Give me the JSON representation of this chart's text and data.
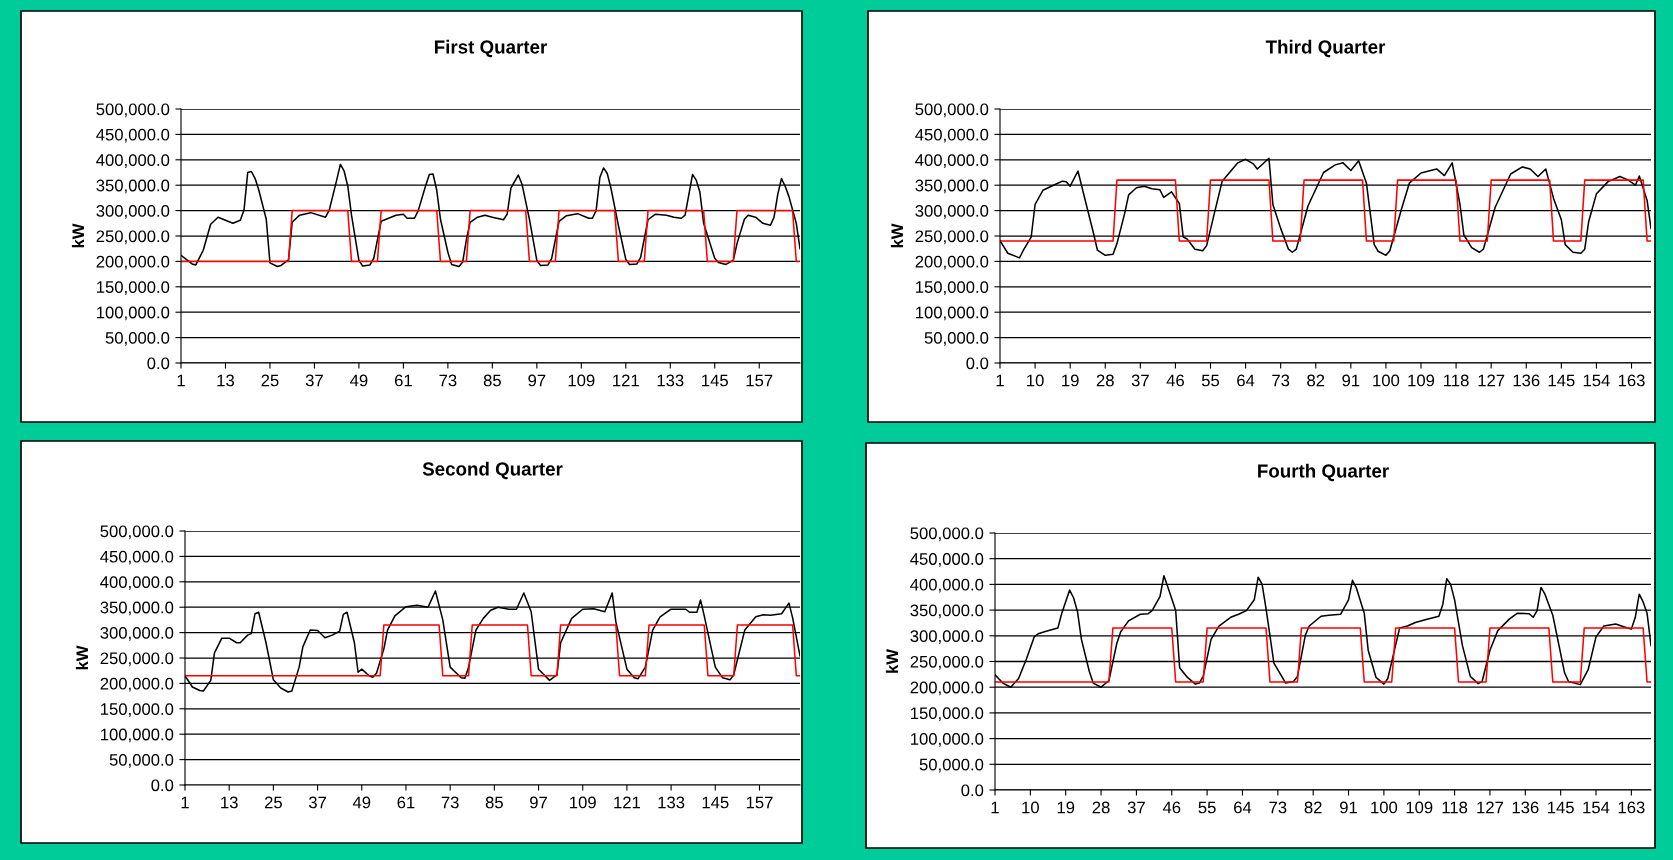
{
  "chart_data": [
    {
      "type": "line",
      "title": "First Quarter",
      "ylabel": "kW",
      "xlim": [
        1,
        168
      ],
      "xticks": [
        1,
        13,
        25,
        37,
        49,
        61,
        73,
        85,
        97,
        109,
        121,
        133,
        145,
        157
      ],
      "ylim": [
        0,
        500000
      ],
      "yticks": [
        {
          "value": 0,
          "label": "0.0"
        },
        {
          "value": 50000,
          "label": "50,000.0"
        },
        {
          "value": 100000,
          "label": "100,000.0"
        },
        {
          "value": 150000,
          "label": "150,000.0"
        },
        {
          "value": 200000,
          "label": "200,000.0"
        },
        {
          "value": 250000,
          "label": "250,000.0"
        },
        {
          "value": 300000,
          "label": "300,000.0"
        },
        {
          "value": 350000,
          "label": "350,000.0"
        },
        {
          "value": 400000,
          "label": "400,000.0"
        },
        {
          "value": 450000,
          "label": "450,000.0"
        },
        {
          "value": 500000,
          "label": "500,000.0"
        }
      ],
      "grid": "y",
      "series": [
        {
          "color": "#000000",
          "x": [
            1,
            4,
            5,
            7,
            9,
            11,
            15,
            17,
            18,
            19,
            20,
            21,
            22,
            24,
            25,
            27,
            28,
            30,
            31,
            33,
            36,
            40,
            41,
            43,
            44,
            45,
            46,
            47,
            49,
            50,
            52,
            53,
            55,
            57,
            59,
            61,
            62,
            64,
            65,
            67,
            68,
            69,
            70,
            71,
            73,
            74,
            76,
            77,
            78,
            79,
            81,
            83,
            85,
            88,
            89,
            90,
            92,
            93,
            95,
            97,
            98,
            100,
            101,
            103,
            105,
            108,
            111,
            112,
            113,
            114,
            115,
            116,
            117,
            119,
            121,
            122,
            124,
            125,
            127,
            129,
            132,
            134,
            136,
            137,
            139,
            140,
            141,
            142,
            145,
            146,
            148,
            150,
            151,
            153,
            154,
            156,
            158,
            160,
            161,
            162,
            163,
            164,
            165,
            167,
            168
          ],
          "values": [
            212000,
            195000,
            193000,
            222000,
            273000,
            287000,
            275000,
            281000,
            301000,
            375000,
            377000,
            363000,
            340000,
            283000,
            197000,
            190000,
            192000,
            203000,
            277000,
            291000,
            296000,
            287000,
            301000,
            360000,
            391000,
            378000,
            348000,
            291000,
            202000,
            191000,
            193000,
            206000,
            279000,
            285000,
            291000,
            293000,
            285000,
            285000,
            300000,
            349000,
            371000,
            372000,
            340000,
            283000,
            218000,
            194000,
            190000,
            199000,
            243000,
            277000,
            287000,
            291000,
            287000,
            282000,
            293000,
            344000,
            370000,
            352000,
            283000,
            202000,
            192000,
            193000,
            206000,
            279000,
            290000,
            294000,
            285000,
            285000,
            300000,
            365000,
            384000,
            373000,
            344000,
            271000,
            204000,
            194000,
            195000,
            208000,
            282000,
            293000,
            291000,
            287000,
            285000,
            291000,
            371000,
            360000,
            336000,
            275000,
            206000,
            198000,
            194000,
            202000,
            235000,
            283000,
            291000,
            287000,
            275000,
            271000,
            287000,
            332000,
            363000,
            348000,
            328000,
            275000,
            225000
          ]
        },
        {
          "color": "#ff0000",
          "x": [
            1,
            30,
            31,
            46,
            47,
            54,
            55,
            70,
            71,
            78,
            79,
            94,
            95,
            102,
            103,
            118,
            119,
            126,
            127,
            142,
            143,
            150,
            151,
            166,
            167,
            168
          ],
          "values": [
            200000,
            200000,
            300000,
            300000,
            200000,
            200000,
            300000,
            300000,
            200000,
            200000,
            300000,
            300000,
            200000,
            200000,
            300000,
            300000,
            200000,
            200000,
            300000,
            300000,
            200000,
            200000,
            300000,
            300000,
            200000,
            200000
          ]
        }
      ]
    },
    {
      "type": "line",
      "title": "Third Quarter",
      "ylabel": "kW",
      "xlim": [
        1,
        168
      ],
      "xticks": [
        1,
        10,
        19,
        28,
        37,
        46,
        55,
        64,
        73,
        82,
        91,
        100,
        109,
        118,
        127,
        136,
        145,
        154,
        163
      ],
      "ylim": [
        0,
        500000
      ],
      "yticks": [
        {
          "value": 0,
          "label": "0.0"
        },
        {
          "value": 50000,
          "label": "50,000.0"
        },
        {
          "value": 100000,
          "label": "100,000.0"
        },
        {
          "value": 150000,
          "label": "150,000.0"
        },
        {
          "value": 200000,
          "label": "200,000.0"
        },
        {
          "value": 250000,
          "label": "250,000.0"
        },
        {
          "value": 300000,
          "label": "300,000.0"
        },
        {
          "value": 350000,
          "label": "350,000.0"
        },
        {
          "value": 400000,
          "label": "400,000.0"
        },
        {
          "value": 450000,
          "label": "450,000.0"
        },
        {
          "value": 500000,
          "label": "500,000.0"
        }
      ],
      "grid": "y",
      "series": [
        {
          "color": "#000000",
          "x": [
            1,
            3,
            6,
            7,
            9,
            10,
            12,
            15,
            17,
            18,
            19,
            21,
            23,
            25,
            26,
            28,
            30,
            31,
            33,
            34,
            36,
            38,
            40,
            42,
            43,
            45,
            47,
            48,
            49,
            51,
            53,
            54,
            56,
            58,
            62,
            64,
            66,
            67,
            70,
            71,
            73,
            75,
            76,
            77,
            80,
            84,
            87,
            89,
            91,
            93,
            95,
            97,
            98,
            100,
            101,
            104,
            106,
            109,
            113,
            115,
            117,
            119,
            120,
            122,
            124,
            125,
            128,
            132,
            135,
            137,
            139,
            141,
            143,
            145,
            146,
            148,
            150,
            151,
            152,
            154,
            157,
            160,
            162,
            164,
            165,
            167,
            168
          ],
          "values": [
            241000,
            216000,
            207000,
            222000,
            248000,
            312000,
            340000,
            351000,
            358000,
            357000,
            348000,
            378000,
            316000,
            255000,
            222000,
            212000,
            214000,
            235000,
            295000,
            331000,
            345000,
            348000,
            343000,
            341000,
            326000,
            337000,
            314000,
            248000,
            244000,
            224000,
            221000,
            231000,
            295000,
            358000,
            394000,
            401000,
            392000,
            382000,
            403000,
            312000,
            265000,
            224000,
            218000,
            224000,
            309000,
            375000,
            390000,
            394000,
            379000,
            398000,
            354000,
            233000,
            220000,
            212000,
            221000,
            303000,
            354000,
            374000,
            382000,
            369000,
            394000,
            312000,
            252000,
            227000,
            218000,
            224000,
            306000,
            372000,
            386000,
            382000,
            367000,
            382000,
            324000,
            282000,
            233000,
            218000,
            216000,
            224000,
            278000,
            333000,
            357000,
            367000,
            361000,
            350000,
            368000,
            320000,
            265000
          ]
        },
        {
          "color": "#ff0000",
          "x": [
            1,
            30,
            31,
            46,
            47,
            54,
            55,
            70,
            71,
            78,
            79,
            94,
            95,
            102,
            103,
            118,
            119,
            126,
            127,
            142,
            143,
            150,
            151,
            166,
            167,
            168
          ],
          "values": [
            240000,
            240000,
            360000,
            360000,
            240000,
            240000,
            360000,
            360000,
            240000,
            240000,
            360000,
            360000,
            240000,
            240000,
            360000,
            360000,
            240000,
            240000,
            360000,
            360000,
            240000,
            240000,
            360000,
            360000,
            240000,
            240000
          ]
        }
      ]
    },
    {
      "type": "line",
      "title": "Second Quarter",
      "ylabel": "kW",
      "xlim": [
        1,
        168
      ],
      "xticks": [
        1,
        13,
        25,
        37,
        49,
        61,
        73,
        85,
        97,
        109,
        121,
        133,
        145,
        157
      ],
      "ylim": [
        0,
        500000
      ],
      "yticks": [
        {
          "value": 0,
          "label": "0.0"
        },
        {
          "value": 50000,
          "label": "50,000.0"
        },
        {
          "value": 100000,
          "label": "100,000.0"
        },
        {
          "value": 150000,
          "label": "150,000.0"
        },
        {
          "value": 200000,
          "label": "200,000.0"
        },
        {
          "value": 250000,
          "label": "250,000.0"
        },
        {
          "value": 300000,
          "label": "300,000.0"
        },
        {
          "value": 350000,
          "label": "350,000.0"
        },
        {
          "value": 400000,
          "label": "400,000.0"
        },
        {
          "value": 450000,
          "label": "450,000.0"
        },
        {
          "value": 500000,
          "label": "500,000.0"
        }
      ],
      "grid": "y",
      "series": [
        {
          "color": "#000000",
          "x": [
            1,
            3,
            5,
            6,
            8,
            9,
            11,
            13,
            15,
            16,
            18,
            19,
            20,
            21,
            23,
            25,
            27,
            29,
            30,
            32,
            33,
            35,
            37,
            39,
            41,
            43,
            44,
            45,
            47,
            48,
            49,
            51,
            52,
            53,
            55,
            56,
            58,
            61,
            64,
            67,
            68,
            69,
            71,
            73,
            76,
            77,
            78,
            80,
            82,
            84,
            86,
            89,
            91,
            93,
            95,
            97,
            100,
            102,
            103,
            106,
            109,
            112,
            115,
            117,
            118,
            121,
            123,
            124,
            126,
            128,
            130,
            133,
            137,
            138,
            140,
            141,
            142,
            145,
            147,
            149,
            150,
            153,
            156,
            158,
            160,
            163,
            165,
            166,
            168
          ],
          "values": [
            215000,
            193000,
            186000,
            185000,
            206000,
            260000,
            289000,
            289000,
            280000,
            280000,
            295000,
            298000,
            337000,
            340000,
            280000,
            207000,
            191000,
            183000,
            185000,
            232000,
            272000,
            305000,
            304000,
            290000,
            295000,
            303000,
            336000,
            340000,
            280000,
            222000,
            228000,
            215000,
            212000,
            220000,
            268000,
            305000,
            333000,
            351000,
            354000,
            350000,
            366000,
            382000,
            325000,
            232000,
            211000,
            210000,
            232000,
            305000,
            328000,
            344000,
            350000,
            346000,
            346000,
            378000,
            341000,
            228000,
            206000,
            217000,
            280000,
            328000,
            346000,
            347000,
            341000,
            378000,
            321000,
            228000,
            211000,
            209000,
            232000,
            305000,
            331000,
            346000,
            346000,
            340000,
            340000,
            364000,
            333000,
            232000,
            211000,
            207000,
            217000,
            305000,
            331000,
            335000,
            334000,
            337000,
            358000,
            329000,
            254000
          ]
        },
        {
          "color": "#ff0000",
          "x": [
            1,
            54,
            55,
            70,
            71,
            78,
            79,
            94,
            95,
            102,
            103,
            118,
            119,
            126,
            127,
            142,
            143,
            150,
            151,
            166,
            167,
            168
          ],
          "values": [
            215000,
            215000,
            315000,
            315000,
            215000,
            215000,
            315000,
            315000,
            215000,
            215000,
            315000,
            315000,
            215000,
            215000,
            315000,
            315000,
            215000,
            215000,
            315000,
            315000,
            215000,
            215000
          ]
        }
      ]
    },
    {
      "type": "line",
      "title": "Fourth Quarter",
      "ylabel": "kW",
      "xlim": [
        1,
        168
      ],
      "xticks": [
        1,
        10,
        19,
        28,
        37,
        46,
        55,
        64,
        73,
        82,
        91,
        100,
        109,
        118,
        127,
        136,
        145,
        154,
        163
      ],
      "ylim": [
        0,
        500000
      ],
      "yticks": [
        {
          "value": 0,
          "label": "0.0"
        },
        {
          "value": 50000,
          "label": "50,000.0"
        },
        {
          "value": 100000,
          "label": "100,000.0"
        },
        {
          "value": 150000,
          "label": "150,000.0"
        },
        {
          "value": 200000,
          "label": "200,000.0"
        },
        {
          "value": 250000,
          "label": "250,000.0"
        },
        {
          "value": 300000,
          "label": "300,000.0"
        },
        {
          "value": 350000,
          "label": "350,000.0"
        },
        {
          "value": 400000,
          "label": "400,000.0"
        },
        {
          "value": 450000,
          "label": "450,000.0"
        },
        {
          "value": 500000,
          "label": "500,000.0"
        }
      ],
      "grid": "y",
      "series": [
        {
          "color": "#000000",
          "x": [
            1,
            3,
            5,
            7,
            9,
            11,
            12,
            14,
            17,
            18,
            20,
            21,
            22,
            23,
            25,
            26,
            28,
            30,
            32,
            33,
            35,
            38,
            40,
            41,
            43,
            44,
            45,
            47,
            48,
            50,
            52,
            53,
            54,
            56,
            58,
            61,
            63,
            65,
            67,
            68,
            69,
            70,
            72,
            74,
            75,
            77,
            78,
            80,
            81,
            84,
            86,
            89,
            91,
            92,
            93,
            95,
            96,
            98,
            100,
            101,
            104,
            106,
            108,
            111,
            114,
            115,
            116,
            117,
            118,
            120,
            122,
            124,
            125,
            127,
            129,
            132,
            134,
            137,
            138,
            139,
            140,
            141,
            143,
            146,
            147,
            150,
            152,
            154,
            156,
            159,
            162,
            163,
            164,
            165,
            166,
            167,
            168
          ],
          "values": [
            224000,
            208000,
            200000,
            217000,
            255000,
            298000,
            304000,
            309000,
            315000,
            344000,
            389000,
            374000,
            347000,
            293000,
            231000,
            208000,
            200000,
            213000,
            285000,
            308000,
            329000,
            342000,
            343000,
            349000,
            376000,
            417000,
            395000,
            349000,
            238000,
            219000,
            206000,
            208000,
            221000,
            293000,
            319000,
            336000,
            342000,
            349000,
            370000,
            414000,
            400000,
            353000,
            247000,
            221000,
            208000,
            211000,
            221000,
            301000,
            319000,
            338000,
            340000,
            342000,
            370000,
            408000,
            393000,
            344000,
            272000,
            219000,
            206000,
            217000,
            315000,
            319000,
            326000,
            332000,
            338000,
            361000,
            411000,
            400000,
            370000,
            281000,
            221000,
            207000,
            211000,
            272000,
            310000,
            333000,
            344000,
            343000,
            336000,
            349000,
            394000,
            381000,
            340000,
            228000,
            211000,
            205000,
            234000,
            298000,
            319000,
            323000,
            315000,
            313000,
            336000,
            381000,
            366000,
            344000,
            281000
          ]
        },
        {
          "color": "#ff0000",
          "x": [
            1,
            30,
            31,
            46,
            47,
            54,
            55,
            70,
            71,
            78,
            79,
            94,
            95,
            102,
            103,
            118,
            119,
            126,
            127,
            142,
            143,
            150,
            151,
            166,
            167,
            168
          ],
          "values": [
            210000,
            210000,
            315000,
            315000,
            210000,
            210000,
            315000,
            315000,
            210000,
            210000,
            315000,
            315000,
            210000,
            210000,
            315000,
            315000,
            210000,
            210000,
            315000,
            315000,
            210000,
            210000,
            315000,
            315000,
            210000,
            210000
          ]
        }
      ]
    }
  ]
}
